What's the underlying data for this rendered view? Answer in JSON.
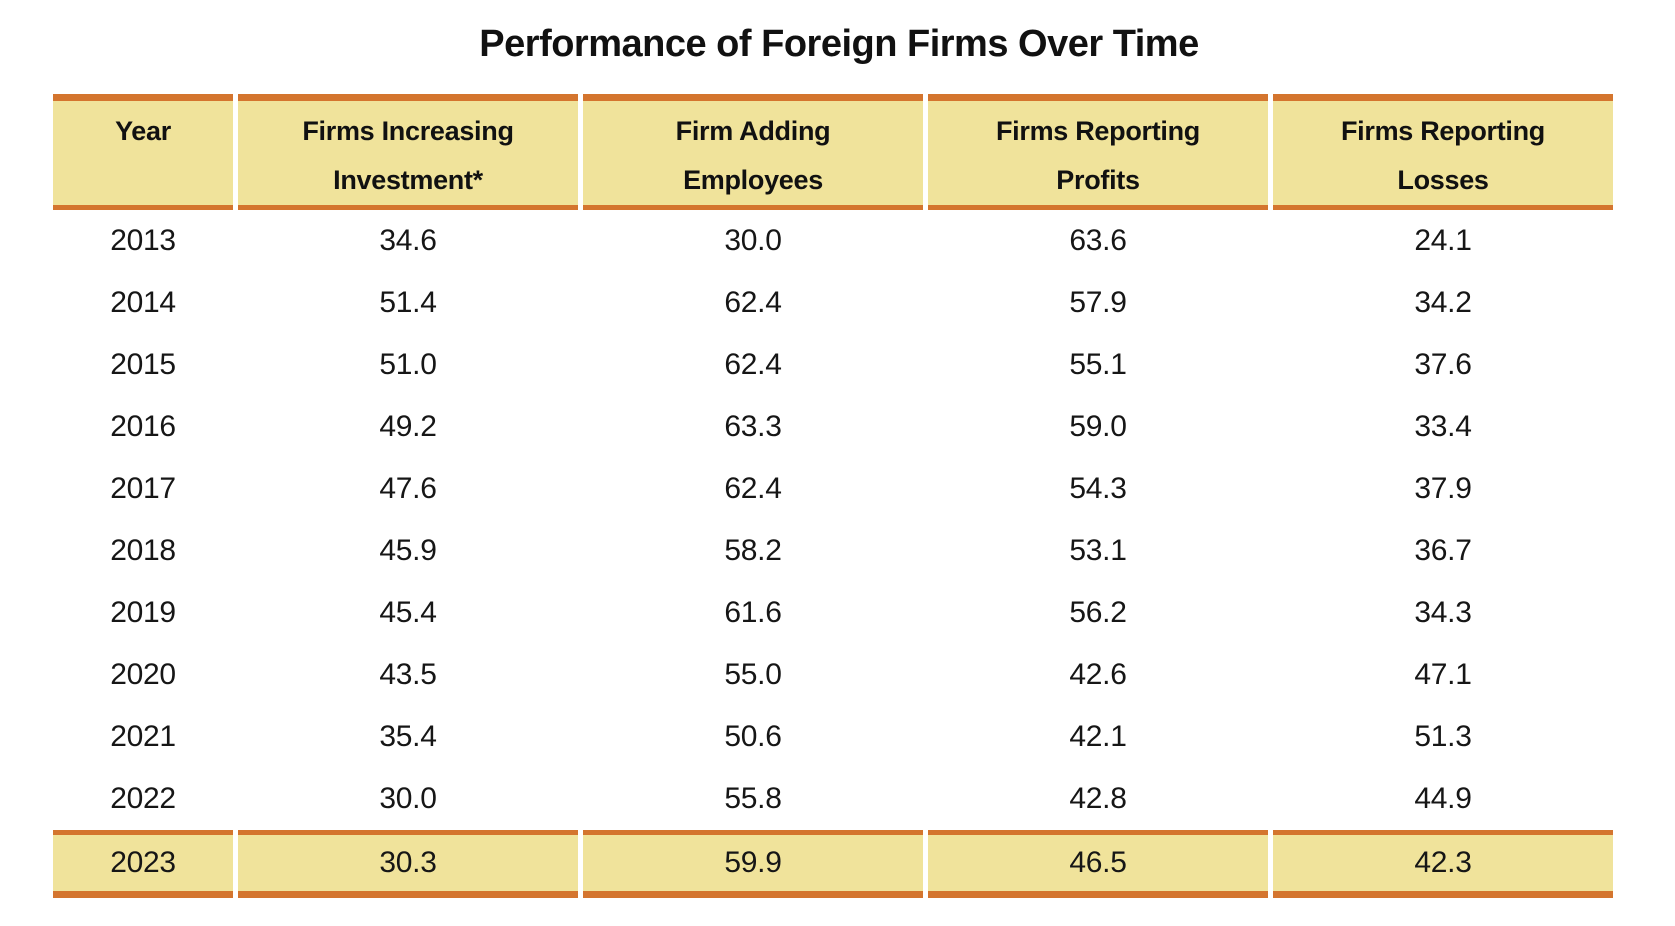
{
  "title": "Performance of Foreign Firms Over Time",
  "colors": {
    "band_background": "#f0e39b",
    "rule_orange": "#d4752e",
    "text": "#161616",
    "page_background": "#ffffff"
  },
  "table": {
    "columns": [
      {
        "line1": "Year",
        "line2": ""
      },
      {
        "line1": "Firms Increasing",
        "line2": "Investment*"
      },
      {
        "line1": "Firm Adding",
        "line2": "Employees"
      },
      {
        "line1": "Firms Reporting",
        "line2": "Profits"
      },
      {
        "line1": "Firms Reporting",
        "line2": "Losses"
      }
    ],
    "rows": [
      [
        "2013",
        "34.6",
        "30.0",
        "63.6",
        "24.1"
      ],
      [
        "2014",
        "51.4",
        "62.4",
        "57.9",
        "34.2"
      ],
      [
        "2015",
        "51.0",
        "62.4",
        "55.1",
        "37.6"
      ],
      [
        "2016",
        "49.2",
        "63.3",
        "59.0",
        "33.4"
      ],
      [
        "2017",
        "47.6",
        "62.4",
        "54.3",
        "37.9"
      ],
      [
        "2018",
        "45.9",
        "58.2",
        "53.1",
        "36.7"
      ],
      [
        "2019",
        "45.4",
        "61.6",
        "56.2",
        "34.3"
      ],
      [
        "2020",
        "43.5",
        "55.0",
        "42.6",
        "47.1"
      ],
      [
        "2021",
        "35.4",
        "50.6",
        "42.1",
        "51.3"
      ],
      [
        "2022",
        "30.0",
        "55.8",
        "42.8",
        "44.9"
      ],
      [
        "2023",
        "30.3",
        "59.9",
        "46.5",
        "42.3"
      ]
    ],
    "highlighted_row_year": "2023"
  },
  "chart_data": {
    "type": "table",
    "title": "Performance of Foreign Firms Over Time",
    "columns": [
      "Year",
      "Firms Increasing Investment*",
      "Firm Adding Employees",
      "Firms Reporting Profits",
      "Firms Reporting Losses"
    ],
    "rows": [
      [
        2013,
        34.6,
        30.0,
        63.6,
        24.1
      ],
      [
        2014,
        51.4,
        62.4,
        57.9,
        34.2
      ],
      [
        2015,
        51.0,
        62.4,
        55.1,
        37.6
      ],
      [
        2016,
        49.2,
        63.3,
        59.0,
        33.4
      ],
      [
        2017,
        47.6,
        62.4,
        54.3,
        37.9
      ],
      [
        2018,
        45.9,
        58.2,
        53.1,
        36.7
      ],
      [
        2019,
        45.4,
        61.6,
        56.2,
        34.3
      ],
      [
        2020,
        43.5,
        55.0,
        42.6,
        47.1
      ],
      [
        2021,
        35.4,
        50.6,
        42.1,
        51.3
      ],
      [
        2022,
        30.0,
        55.8,
        42.8,
        44.9
      ],
      [
        2023,
        30.3,
        59.9,
        46.5,
        42.3
      ]
    ],
    "highlighted_row_year": 2023,
    "notes": "Header band and 2023 row shaded khaki-yellow with orange horizontal rules"
  }
}
